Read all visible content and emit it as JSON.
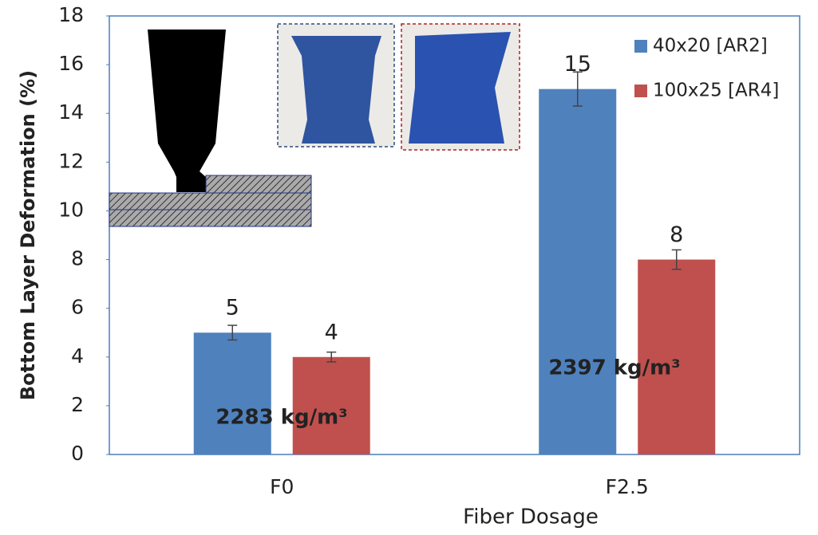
{
  "chart_data": {
    "type": "bar",
    "x_label": "Fiber Dosage",
    "y_label": "Bottom Layer Deformation (%)",
    "categories": [
      "F0",
      "F2.5"
    ],
    "series": [
      {
        "name": "40x20 [AR2]",
        "color": "#4f81bd",
        "values": [
          5,
          15
        ],
        "errors": [
          0.3,
          0.7
        ]
      },
      {
        "name": "100x25 [AR4]",
        "color": "#c0504d",
        "values": [
          4,
          8
        ],
        "errors": [
          0.2,
          0.4
        ]
      }
    ],
    "annotations": [
      "2283 kg/m³",
      "2397 kg/m³"
    ],
    "ylim": [
      0,
      18
    ],
    "yticks": [
      0,
      2,
      4,
      6,
      8,
      10,
      12,
      14,
      16,
      18
    ],
    "legend": "upper right"
  }
}
